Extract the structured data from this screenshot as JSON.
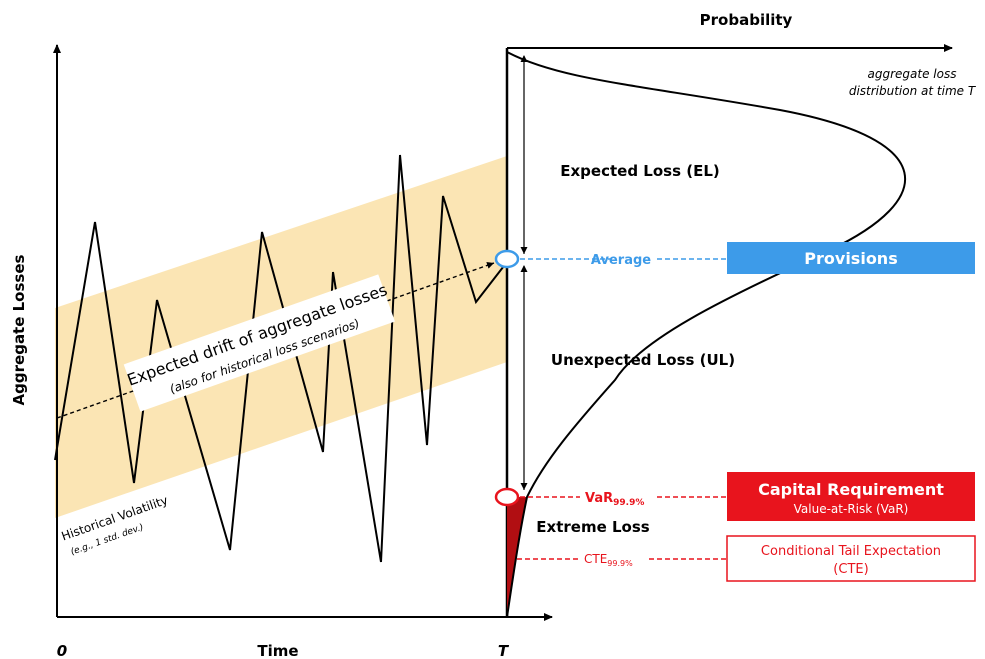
{
  "axes": {
    "y_label": "Aggregate Losses",
    "x_label": "Time",
    "origin_label": "0",
    "horizon_label": "T",
    "probability_label": "Probability"
  },
  "distribution": {
    "caption_line1": "aggregate loss",
    "caption_line2": "distribution at time T"
  },
  "regions": {
    "expected_loss": "Expected Loss (EL)",
    "unexpected_loss": "Unexpected Loss (UL)",
    "extreme_loss": "Extreme Loss"
  },
  "drift": {
    "line1": "Expected drift of aggregate losses",
    "line2": "(also for historical loss scenarios)"
  },
  "volatility": {
    "line1": "Historical Volatility",
    "line2": "(e.g., 1 std. dev.)"
  },
  "markers": {
    "average": "Average",
    "var_main": "VaR",
    "var_sub": "99.9%",
    "cte_main": "CTE",
    "cte_sub": "99.9%"
  },
  "boxes": {
    "provisions": "Provisions",
    "capital_title": "Capital Requirement",
    "capital_sub": "Value-at-Risk (VaR)",
    "cte_line1": "Conditional Tail Expectation",
    "cte_line2": "(CTE)"
  },
  "colors": {
    "band": "#fbe5b4",
    "blue": "#3d9be9",
    "red": "#e8141d",
    "dark_red": "#b10e12",
    "black": "#000000"
  }
}
